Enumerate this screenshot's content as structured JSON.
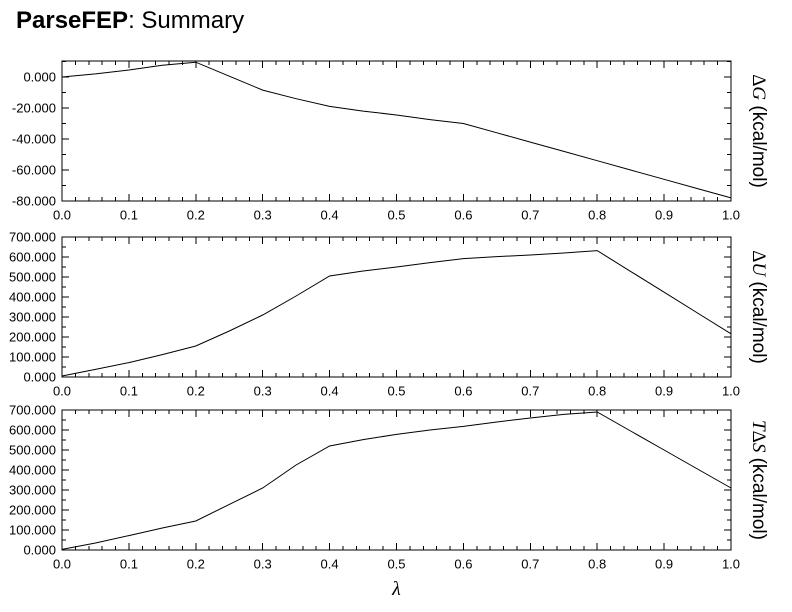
{
  "title": {
    "app": "ParseFEP",
    "rest": ": Summary"
  },
  "colors": {
    "foreground": "#000000",
    "background": "#ffffff"
  },
  "chart_data": [
    {
      "type": "line",
      "name": "delta-g",
      "title": "",
      "ylabel_parts": [
        {
          "text": "Δ",
          "italic": false
        },
        {
          "text": "G",
          "italic": true
        }
      ],
      "ylabel_unit": " (kcal/mol)",
      "xlabel": "",
      "xlim": [
        0,
        1
      ],
      "ylim": [
        -80,
        10.3
      ],
      "xtick_labels": [
        "0.0",
        "0.1",
        "0.2",
        "0.3",
        "0.4",
        "0.5",
        "0.6",
        "0.7",
        "0.8",
        "0.9",
        "1.0"
      ],
      "ytick_labels": [
        "0.000",
        "-20.000",
        "-40.000",
        "-60.000",
        "-80.000"
      ],
      "xtick_minor_step": 0.02,
      "ytick_minor_step": 10,
      "grid": false,
      "legend": "none",
      "x": [
        0,
        0.05,
        0.1,
        0.15,
        0.2,
        0.25,
        0.3,
        0.35,
        0.4,
        0.45,
        0.5,
        0.55,
        0.6,
        0.65,
        0.7,
        0.75,
        0.8,
        0.85,
        0.9,
        0.95,
        1.0
      ],
      "values": [
        0.0,
        2.0,
        4.5,
        7.5,
        9.5,
        0.5,
        -8.5,
        -14.0,
        -19.0,
        -22.0,
        -24.5,
        -27.5,
        -30.0,
        -36.0,
        -42.0,
        -48.0,
        -54.0,
        -60.0,
        -66.0,
        -72.0,
        -78.0
      ]
    },
    {
      "type": "line",
      "name": "delta-u",
      "title": "",
      "ylabel_parts": [
        {
          "text": "Δ",
          "italic": false
        },
        {
          "text": "U",
          "italic": true
        }
      ],
      "ylabel_unit": " (kcal/mol)",
      "xlabel": "",
      "xlim": [
        0,
        1
      ],
      "ylim": [
        0,
        700
      ],
      "xtick_labels": [
        "0.0",
        "0.1",
        "0.2",
        "0.3",
        "0.4",
        "0.5",
        "0.6",
        "0.7",
        "0.8",
        "0.9",
        "1.0"
      ],
      "ytick_labels": [
        "0.000",
        "100.000",
        "200.000",
        "300.000",
        "400.000",
        "500.000",
        "600.000",
        "700.000"
      ],
      "xtick_minor_step": 0.02,
      "ytick_minor_step": 50,
      "grid": false,
      "legend": "none",
      "x": [
        0,
        0.05,
        0.1,
        0.15,
        0.2,
        0.25,
        0.3,
        0.35,
        0.4,
        0.45,
        0.5,
        0.55,
        0.6,
        0.65,
        0.7,
        0.75,
        0.8,
        0.85,
        0.9,
        0.95,
        1.0
      ],
      "values": [
        5,
        38,
        72,
        112,
        155,
        230,
        310,
        405,
        505,
        530,
        550,
        572,
        592,
        602,
        610,
        620,
        632,
        528,
        424,
        320,
        216
      ]
    },
    {
      "type": "line",
      "name": "t-delta-s",
      "title": "",
      "ylabel_parts": [
        {
          "text": "T",
          "italic": true
        },
        {
          "text": "Δ",
          "italic": false
        },
        {
          "text": "S",
          "italic": true
        }
      ],
      "ylabel_unit": " (kcal/mol)",
      "xlabel": "λ",
      "xlim": [
        0,
        1
      ],
      "ylim": [
        0,
        700
      ],
      "xtick_labels": [
        "0.0",
        "0.1",
        "0.2",
        "0.3",
        "0.4",
        "0.5",
        "0.6",
        "0.7",
        "0.8",
        "0.9",
        "1.0"
      ],
      "ytick_labels": [
        "0.000",
        "100.000",
        "200.000",
        "300.000",
        "400.000",
        "500.000",
        "600.000",
        "700.000"
      ],
      "xtick_minor_step": 0.02,
      "ytick_minor_step": 50,
      "grid": false,
      "legend": "none",
      "x": [
        0,
        0.05,
        0.1,
        0.15,
        0.2,
        0.25,
        0.3,
        0.35,
        0.4,
        0.45,
        0.5,
        0.55,
        0.6,
        0.65,
        0.7,
        0.75,
        0.8,
        0.85,
        0.9,
        0.95,
        1.0
      ],
      "values": [
        3,
        35,
        72,
        110,
        145,
        228,
        310,
        425,
        520,
        552,
        578,
        600,
        618,
        640,
        660,
        678,
        690,
        595,
        500,
        405,
        310
      ]
    }
  ]
}
